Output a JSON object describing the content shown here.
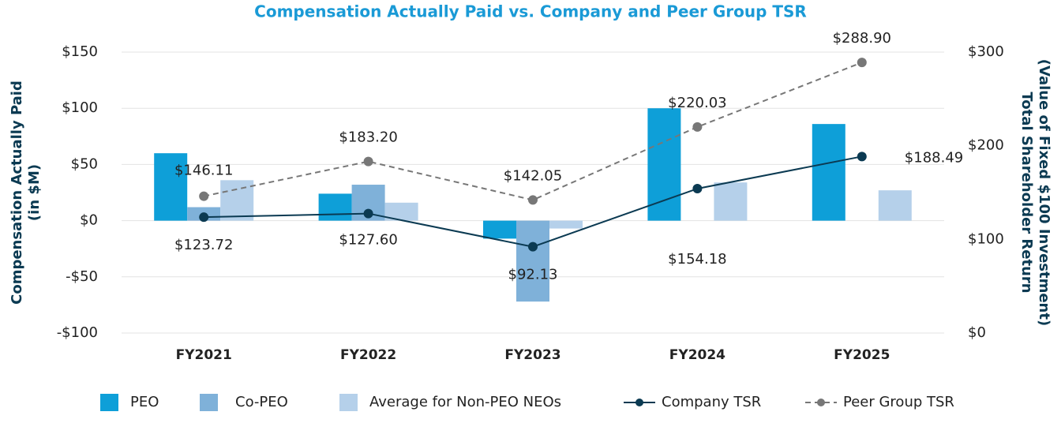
{
  "chart_data": {
    "type": "bar",
    "title": "Compensation Actually Paid vs. Company and Peer Group TSR",
    "y_label": [
      "Compensation Actually Paid",
      "(in $M)"
    ],
    "y2_label": [
      "Total Shareholder Return",
      "(Value of Fixed $100 Investment)"
    ],
    "categories": [
      "FY2021",
      "FY2022",
      "FY2023",
      "FY2024",
      "FY2025"
    ],
    "ylim": [
      -100,
      150
    ],
    "yticks": [
      {
        "value": -100,
        "label": "-$100"
      },
      {
        "value": -50,
        "label": "-$50"
      },
      {
        "value": 0,
        "label": "$0"
      },
      {
        "value": 50,
        "label": "$50"
      },
      {
        "value": 100,
        "label": "$100"
      },
      {
        "value": 150,
        "label": "$150"
      }
    ],
    "y2lim": [
      0,
      300
    ],
    "y2ticks": [
      {
        "value": 0,
        "label": "$0"
      },
      {
        "value": 100,
        "label": "$100"
      },
      {
        "value": 200,
        "label": "$200"
      },
      {
        "value": 300,
        "label": "$300"
      }
    ],
    "grid": true,
    "series": [
      {
        "name": "PEO",
        "type": "bar",
        "color": "#0e9fd8",
        "values": [
          60,
          24,
          -16,
          100,
          86
        ]
      },
      {
        "name": "Co-PEO",
        "type": "bar",
        "color": "#7fb1d9",
        "values": [
          12,
          32,
          -72,
          null,
          null
        ]
      },
      {
        "name": "Average for Non-PEO NEOs",
        "type": "bar",
        "color": "#b5d0ea",
        "values": [
          36,
          16,
          -7,
          34,
          27
        ]
      },
      {
        "name": "Company TSR",
        "type": "line",
        "axis": "y2",
        "color": "#0b3a52",
        "dashed": false,
        "values": [
          123.72,
          127.6,
          92.13,
          154.18,
          188.49
        ],
        "value_labels": [
          "$123.72",
          "$127.60",
          "$92.13",
          "$154.18",
          "$188.49"
        ]
      },
      {
        "name": "Peer Group TSR",
        "type": "line",
        "axis": "y2",
        "color": "#777777",
        "dashed": true,
        "values": [
          146.11,
          183.2,
          142.05,
          220.03,
          288.9
        ],
        "value_labels": [
          "$146.11",
          "$183.20",
          "$142.05",
          "$220.03",
          "$288.90"
        ]
      }
    ]
  }
}
